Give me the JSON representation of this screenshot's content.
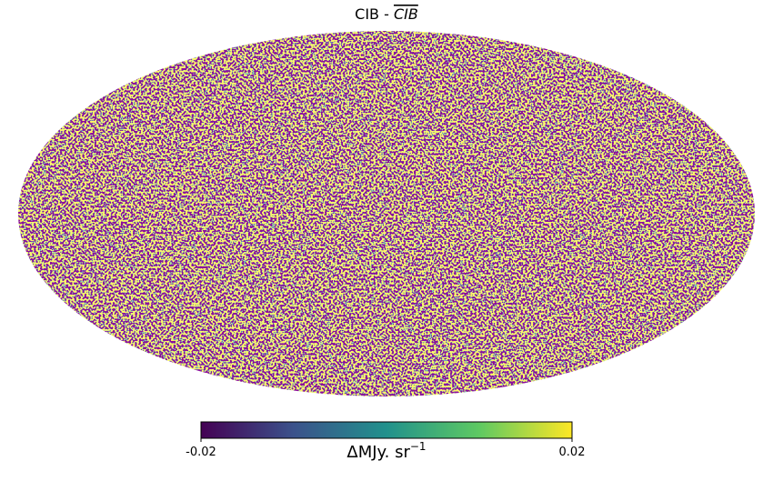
{
  "chart_data": {
    "type": "mollweide",
    "title": "CIB -",
    "title_overline": "CIB",
    "colormap": [
      "#440154",
      "#3b528b",
      "#21918c",
      "#5ec962",
      "#fde725"
    ],
    "colorbar": {
      "lim": [
        -0.02,
        0.02
      ],
      "ticks": [
        -0.02,
        0.02
      ],
      "label": "ΔMJy. sr",
      "label_exponent": "−1"
    }
  }
}
